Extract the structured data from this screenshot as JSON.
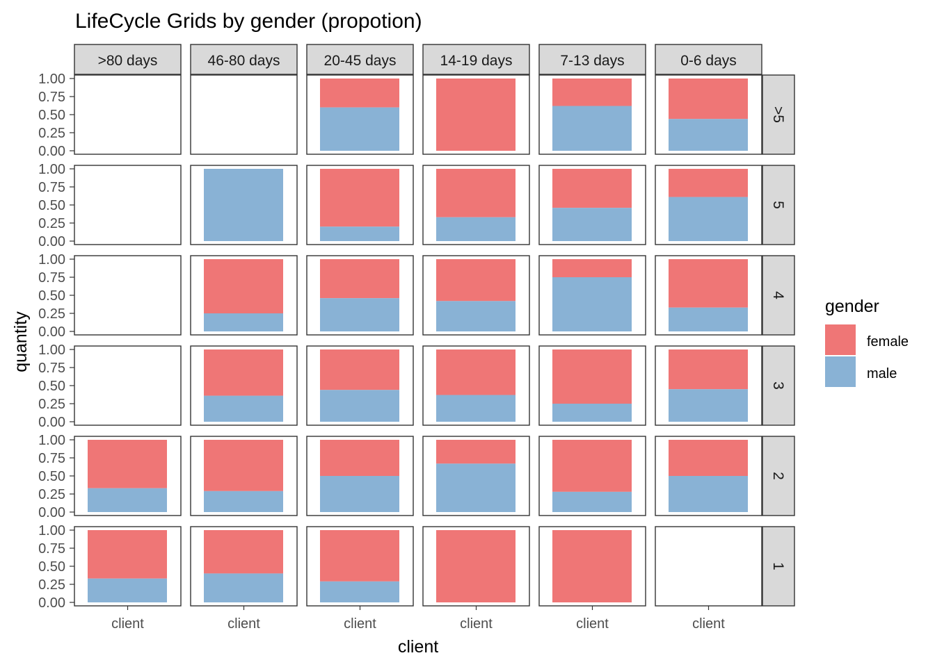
{
  "chart_data": {
    "type": "bar",
    "title": "LifeCycle Grids by gender (propotion)",
    "xlabel": "client",
    "ylabel": "quantity",
    "x_tick_label": "client",
    "y_ticks": [
      "1.00",
      "0.75",
      "0.50",
      "0.25",
      "0.00"
    ],
    "ylim": [
      0,
      1
    ],
    "grid": false,
    "col_facets": [
      ">80 days",
      "46-80 days",
      "20-45 days",
      "14-19 days",
      "7-13 days",
      "0-6 days"
    ],
    "row_facets": [
      ">5",
      "5",
      "4",
      "3",
      "2",
      "1"
    ],
    "legend": {
      "title": "gender",
      "position": "right",
      "entries": [
        {
          "label": "female",
          "color": "#ef7676"
        },
        {
          "label": "male",
          "color": "#89b2d5"
        }
      ]
    },
    "male_share": [
      [
        null,
        null,
        0.6,
        0.0,
        0.62,
        0.44
      ],
      [
        null,
        1.0,
        0.2,
        0.33,
        0.46,
        0.61
      ],
      [
        null,
        0.25,
        0.46,
        0.42,
        0.75,
        0.33
      ],
      [
        null,
        0.36,
        0.44,
        0.37,
        0.25,
        0.45
      ],
      [
        0.33,
        0.29,
        0.5,
        0.67,
        0.28,
        0.5
      ],
      [
        0.33,
        0.4,
        0.29,
        0.0,
        0.0,
        null
      ]
    ]
  }
}
